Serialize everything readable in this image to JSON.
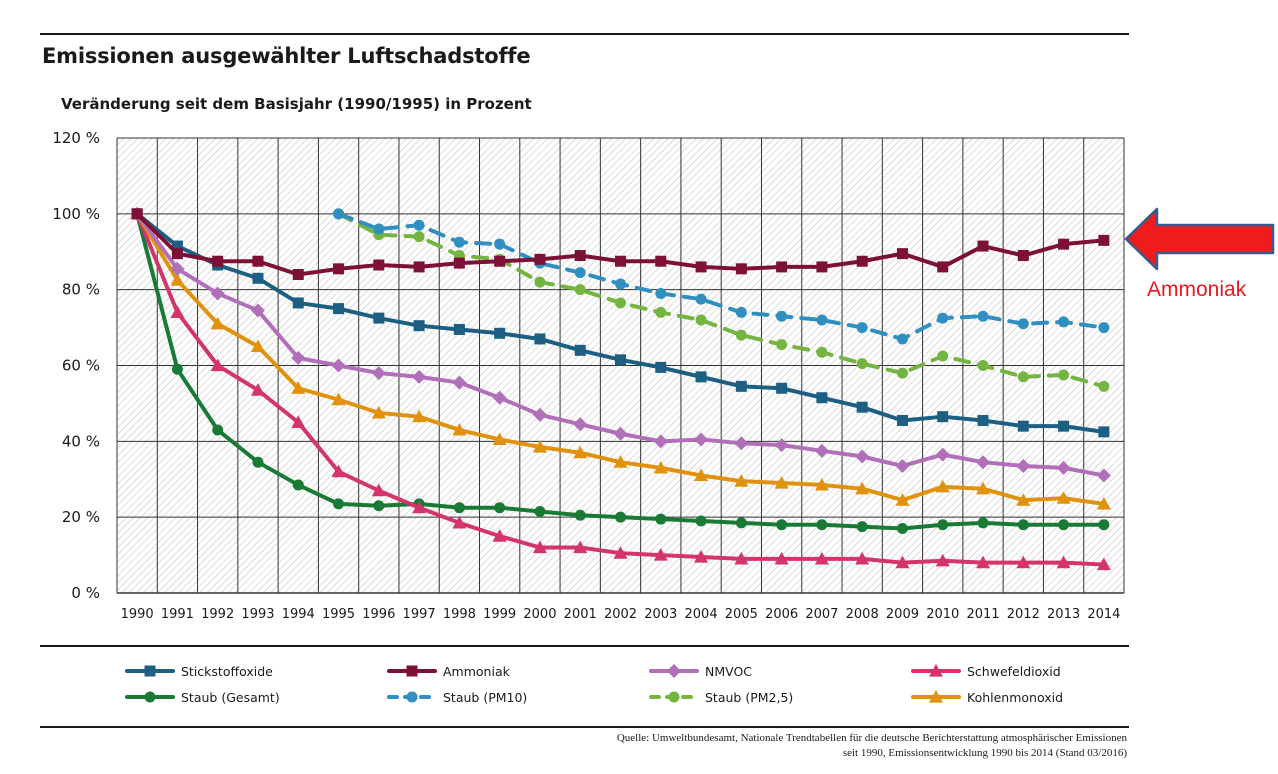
{
  "header": {
    "title": "Emissionen ausgewählter Luftschadstoffe",
    "subtitle": "Veränderung seit dem Basisjahr (1990/1995) in Prozent"
  },
  "annotation": {
    "label": "Ammoniak",
    "color": "#e8181d"
  },
  "source": {
    "line1": "Quelle: Umweltbundesamt, Nationale Trendtabellen für die deutsche Berichterstattung atmosphärischer Emissionen",
    "line2": "seit 1990, Emissionsentwicklung 1990 bis 2014 (Stand 03/2016)"
  },
  "chart_data": {
    "type": "line",
    "title": "Emissionen ausgewählter Luftschadstoffe",
    "subtitle": "Veränderung seit dem Basisjahr (1990/1995) in Prozent",
    "xlabel": "",
    "ylabel": "",
    "x": [
      1990,
      1991,
      1992,
      1993,
      1994,
      1995,
      1996,
      1997,
      1998,
      1999,
      2000,
      2001,
      2002,
      2003,
      2004,
      2005,
      2006,
      2007,
      2008,
      2009,
      2010,
      2011,
      2012,
      2013,
      2014
    ],
    "ylim": [
      0,
      120
    ],
    "yticks": [
      0,
      20,
      40,
      60,
      80,
      100,
      120
    ],
    "ytick_labels": [
      "0 %",
      "20 %",
      "40 %",
      "60 %",
      "80 %",
      "100 %",
      "120 %"
    ],
    "grid": true,
    "legend_position": "bottom",
    "series": [
      {
        "name": "Stickstoffoxide",
        "color": "#1d5f83",
        "marker": "square",
        "dashed": false,
        "values": [
          100,
          91.5,
          86.5,
          83,
          76.5,
          75,
          72.5,
          70.5,
          69.5,
          68.5,
          67,
          64,
          61.5,
          59.5,
          57,
          54.5,
          54,
          51.5,
          49,
          45.5,
          46.5,
          45.5,
          44,
          44,
          42.5
        ]
      },
      {
        "name": "Ammoniak",
        "color": "#7c1036",
        "marker": "square",
        "dashed": false,
        "values": [
          100,
          89.5,
          87.5,
          87.5,
          84,
          85.5,
          86.5,
          86,
          87,
          87.5,
          88,
          89,
          87.5,
          87.5,
          86,
          85.5,
          86,
          86,
          87.5,
          89.5,
          86,
          91.5,
          89,
          92,
          93
        ]
      },
      {
        "name": "NMVOC",
        "color": "#b06fb8",
        "marker": "diamond",
        "dashed": false,
        "values": [
          100,
          85.5,
          79,
          74.5,
          62,
          60,
          58,
          57,
          55.5,
          51.5,
          47,
          44.5,
          42,
          40,
          40.5,
          39.5,
          39,
          37.5,
          36,
          33.5,
          36.5,
          34.5,
          33.5,
          33,
          31
        ]
      },
      {
        "name": "Schwefeldioxid",
        "color": "#d4336c",
        "marker": "triangle",
        "dashed": false,
        "values": [
          100,
          74,
          60,
          53.5,
          45,
          32,
          27,
          22.5,
          18.5,
          15,
          12,
          12,
          10.5,
          10,
          9.5,
          9,
          9,
          9,
          9,
          8,
          8.5,
          8,
          8,
          8,
          7.5
        ]
      },
      {
        "name": "Staub (Gesamt)",
        "color": "#187a34",
        "marker": "circle",
        "dashed": false,
        "values": [
          100,
          59,
          43,
          34.5,
          28.5,
          23.5,
          23,
          23.5,
          22.5,
          22.5,
          21.5,
          20.5,
          20,
          19.5,
          19,
          18.5,
          18,
          18,
          17.5,
          17,
          18,
          18.5,
          18,
          18,
          18
        ]
      },
      {
        "name": "Staub (PM10)",
        "color": "#2e8fc0",
        "marker": "circle",
        "dashed": true,
        "values": [
          null,
          null,
          null,
          null,
          null,
          100,
          96,
          97,
          92.5,
          92,
          87,
          84.5,
          81.5,
          79,
          77.5,
          74,
          73,
          72,
          70,
          67,
          72.5,
          73,
          71,
          71.5,
          70
        ]
      },
      {
        "name": "Staub (PM2,5)",
        "color": "#74b541",
        "marker": "circle",
        "dashed": true,
        "values": [
          null,
          null,
          null,
          null,
          null,
          100,
          94.5,
          94,
          89,
          88,
          82,
          80,
          76.5,
          74,
          72,
          68,
          65.5,
          63.5,
          60.5,
          58,
          62.5,
          60,
          57,
          57.5,
          54.5
        ]
      },
      {
        "name": "Kohlenmonoxid",
        "color": "#e1920d",
        "marker": "triangle",
        "dashed": false,
        "values": [
          100,
          82.5,
          71,
          65,
          54,
          51,
          47.5,
          46.5,
          43,
          40.5,
          38.5,
          37,
          34.5,
          33,
          31,
          29.5,
          29,
          28.5,
          27.5,
          24.5,
          28,
          27.5,
          24.5,
          25,
          23.5
        ]
      }
    ]
  }
}
